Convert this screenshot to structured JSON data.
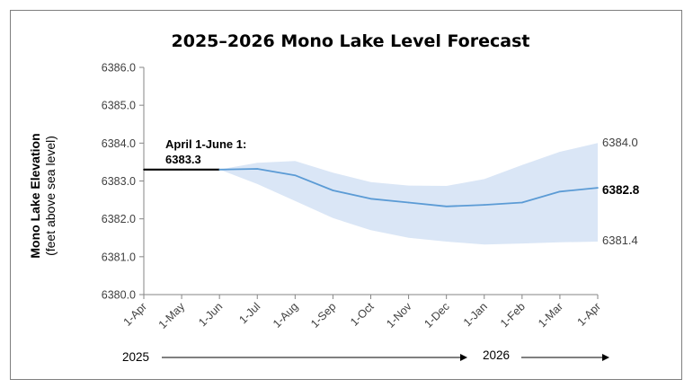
{
  "chart_data": {
    "type": "line",
    "title": "2025–2026 Mono Lake Level Forecast",
    "ylabel": "Mono Lake Elevation",
    "ylabel_sub": "(feet above sea level)",
    "xlabel": "",
    "categories": [
      "1-Apr",
      "1-May",
      "1-Jun",
      "1-Jul",
      "1-Aug",
      "1-Sep",
      "1-Oct",
      "1-Nov",
      "1-Dec",
      "1-Jan",
      "1-Feb",
      "1-Mar",
      "1-Apr"
    ],
    "yticks": [
      "6380.0",
      "6381.0",
      "6382.0",
      "6383.0",
      "6384.0",
      "6385.0",
      "6386.0"
    ],
    "ylim": [
      6380.0,
      6386.0
    ],
    "grid": false,
    "series": [
      {
        "role": "observed",
        "color": "#000000",
        "x": [
          "1-Apr",
          "1-May",
          "1-Jun"
        ],
        "values": [
          6383.3,
          6383.3,
          6383.3
        ]
      },
      {
        "role": "forecast-median",
        "color": "#5b9bd5",
        "x": [
          "1-Jun",
          "1-Jul",
          "1-Aug",
          "1-Sep",
          "1-Oct",
          "1-Nov",
          "1-Dec",
          "1-Jan",
          "1-Feb",
          "1-Mar",
          "1-Apr"
        ],
        "values": [
          6383.3,
          6383.32,
          6383.15,
          6382.75,
          6382.53,
          6382.43,
          6382.33,
          6382.37,
          6382.43,
          6382.72,
          6382.82
        ]
      }
    ],
    "band": {
      "role": "forecast-range",
      "color": "#dae6f6",
      "x": [
        "1-Jun",
        "1-Jul",
        "1-Aug",
        "1-Sep",
        "1-Oct",
        "1-Nov",
        "1-Dec",
        "1-Jan",
        "1-Feb",
        "1-Mar",
        "1-Apr"
      ],
      "upper": [
        6383.3,
        6383.48,
        6383.53,
        6383.22,
        6382.97,
        6382.88,
        6382.87,
        6383.05,
        6383.42,
        6383.77,
        6384.0
      ],
      "lower": [
        6383.3,
        6382.92,
        6382.47,
        6382.02,
        6381.7,
        6381.5,
        6381.4,
        6381.32,
        6381.35,
        6381.38,
        6381.4
      ]
    },
    "annotation": {
      "line1": "April 1-June 1:",
      "line2": "6383.3"
    },
    "end_labels": {
      "upper": "6384.0",
      "median": "6382.8",
      "lower": "6381.4"
    },
    "years": [
      {
        "label": "2025"
      },
      {
        "label": "2026"
      }
    ]
  }
}
